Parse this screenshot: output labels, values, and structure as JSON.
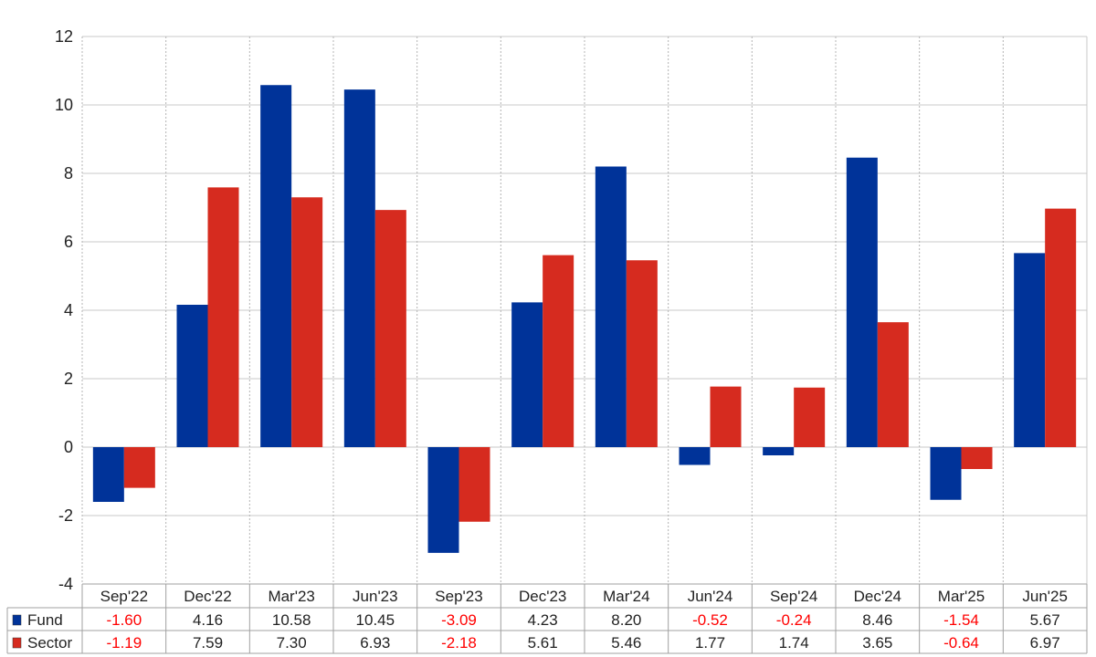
{
  "chart_data": {
    "type": "bar",
    "categories": [
      "Sep'22",
      "Dec'22",
      "Mar'23",
      "Jun'23",
      "Sep'23",
      "Dec'23",
      "Mar'24",
      "Jun'24",
      "Sep'24",
      "Dec'24",
      "Mar'25",
      "Jun'25"
    ],
    "series": [
      {
        "name": "Fund",
        "color": "#003399",
        "values": [
          -1.6,
          4.16,
          10.58,
          10.45,
          -3.09,
          4.23,
          8.2,
          -0.52,
          -0.24,
          8.46,
          -1.54,
          5.67
        ],
        "labels": [
          "-1.60",
          "4.16",
          "10.58",
          "10.45",
          "-3.09",
          "4.23",
          "8.20",
          "-0.52",
          "-0.24",
          "8.46",
          "-1.54",
          "5.67"
        ]
      },
      {
        "name": "Sector",
        "color": "#d62b1f",
        "values": [
          -1.19,
          7.59,
          7.3,
          6.93,
          -2.18,
          5.61,
          5.46,
          1.77,
          1.74,
          3.65,
          -0.64,
          6.97
        ],
        "labels": [
          "-1.19",
          "7.59",
          "7.30",
          "6.93",
          "-2.18",
          "5.61",
          "5.46",
          "1.77",
          "1.74",
          "3.65",
          "-0.64",
          "6.97"
        ]
      }
    ],
    "yticks": [
      "-4",
      "-2",
      "0",
      "2",
      "4",
      "6",
      "8",
      "10",
      "12"
    ],
    "ylim": [
      -4,
      12
    ],
    "negative_value_color": "#ff0000",
    "grid": true,
    "legend": "data-table-below"
  }
}
